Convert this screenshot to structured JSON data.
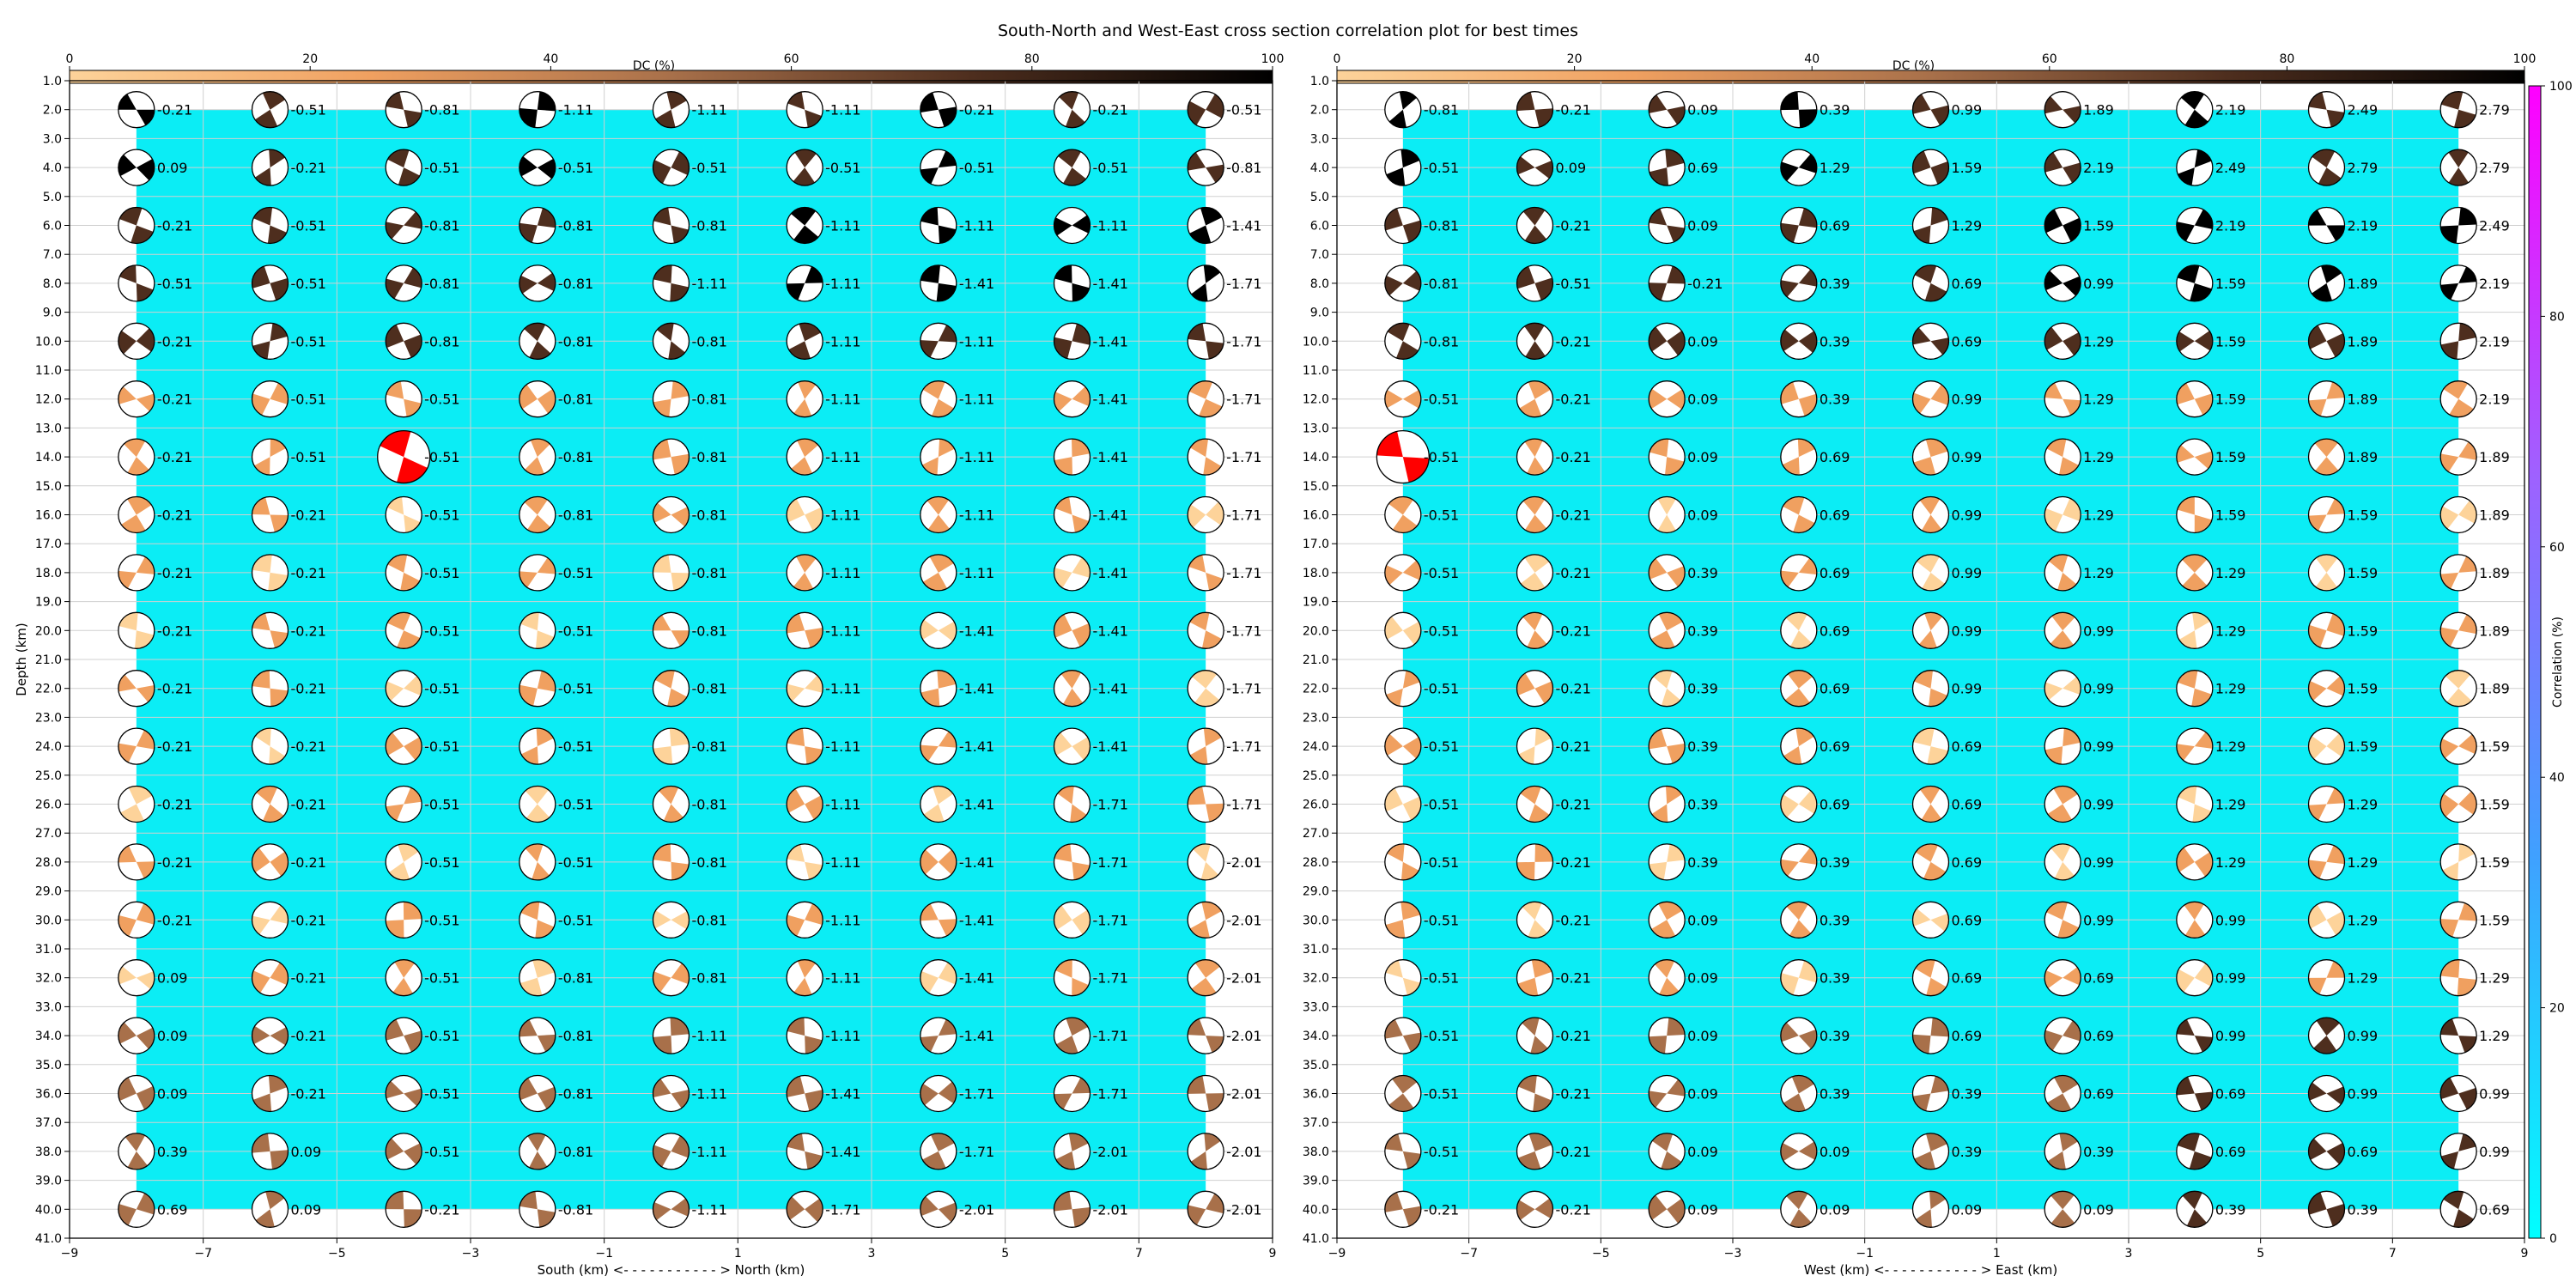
{
  "title": "South-North and West-East cross section correlation plot for best times",
  "colors": {
    "background_fill": "#0bedf5",
    "grid": "#d0d0d0",
    "best_solution": "#ff0000",
    "dc_gradient": [
      "#fdd39a",
      "#f0a060",
      "#a8704a",
      "#4e2e1e",
      "#000000"
    ],
    "correlation_gradient": [
      "#00ffff",
      "#40a0ff",
      "#a060ff",
      "#ff00ff"
    ]
  },
  "dc_colorbar": {
    "label": "DC (%)",
    "ticks": [
      "0",
      "20",
      "40",
      "60",
      "80",
      "100"
    ]
  },
  "correlation_colorbar": {
    "label": "Correlation (%)",
    "ticks": [
      "0",
      "20",
      "40",
      "60",
      "80",
      "100"
    ]
  },
  "ylabel": "Depth (km)",
  "y_ticks": [
    "1.0",
    "2.0",
    "3.0",
    "4.0",
    "5.0",
    "6.0",
    "7.0",
    "8.0",
    "9.0",
    "10.0",
    "11.0",
    "12.0",
    "13.0",
    "14.0",
    "15.0",
    "16.0",
    "17.0",
    "18.0",
    "19.0",
    "20.0",
    "21.0",
    "22.0",
    "23.0",
    "24.0",
    "25.0",
    "26.0",
    "27.0",
    "28.0",
    "29.0",
    "30.0",
    "31.0",
    "32.0",
    "33.0",
    "34.0",
    "35.0",
    "36.0",
    "37.0",
    "38.0",
    "39.0",
    "40.0",
    "41.0"
  ],
  "x_ticks": [
    "−9",
    "−7",
    "−5",
    "−3",
    "−1",
    "1",
    "3",
    "5",
    "7",
    "9"
  ],
  "chart_data": [
    {
      "type": "scatter",
      "subtype": "beachball-grid",
      "xlabel": "South (km) <- - - - - - - - - - - > North (km)",
      "ylabel": "Depth (km)",
      "xlim": [
        -9,
        9
      ],
      "ylim": [
        41,
        1
      ],
      "x": [
        -8,
        -6,
        -4,
        -2,
        0,
        2,
        4,
        6,
        8
      ],
      "depths": [
        2,
        4,
        6,
        8,
        10,
        12,
        14,
        16,
        18,
        20,
        22,
        24,
        26,
        28,
        30,
        32,
        34,
        36,
        38,
        40
      ],
      "best": {
        "x": -4,
        "depth": 14
      },
      "labels": [
        [
          "-0.21",
          "-0.51",
          "-0.81",
          "-1.11",
          "-1.11",
          "-1.11",
          "-0.21",
          "-0.21",
          "-0.51"
        ],
        [
          "0.09",
          "-0.21",
          "-0.51",
          "-0.51",
          "-0.51",
          "-0.51",
          "-0.51",
          "-0.51",
          "-0.81"
        ],
        [
          "-0.21",
          "-0.51",
          "-0.81",
          "-0.81",
          "-0.81",
          "-1.11",
          "-1.11",
          "-1.11",
          "-1.41"
        ],
        [
          "-0.51",
          "-0.51",
          "-0.81",
          "-0.81",
          "-1.11",
          "-1.11",
          "-1.41",
          "-1.41",
          "-1.71"
        ],
        [
          "-0.21",
          "-0.51",
          "-0.81",
          "-0.81",
          "-0.81",
          "-1.11",
          "-1.11",
          "-1.41",
          "-1.71"
        ],
        [
          "-0.21",
          "-0.51",
          "-0.51",
          "-0.81",
          "-0.81",
          "-1.11",
          "-1.11",
          "-1.41",
          "-1.71"
        ],
        [
          "-0.21",
          "-0.51",
          "-0.51",
          "-0.81",
          "-0.81",
          "-1.11",
          "-1.11",
          "-1.41",
          "-1.71"
        ],
        [
          "-0.21",
          "-0.21",
          "-0.51",
          "-0.81",
          "-0.81",
          "-1.11",
          "-1.11",
          "-1.41",
          "-1.71"
        ],
        [
          "-0.21",
          "-0.21",
          "-0.51",
          "-0.51",
          "-0.81",
          "-1.11",
          "-1.11",
          "-1.41",
          "-1.71"
        ],
        [
          "-0.21",
          "-0.21",
          "-0.51",
          "-0.51",
          "-0.81",
          "-1.11",
          "-1.41",
          "-1.41",
          "-1.71"
        ],
        [
          "-0.21",
          "-0.21",
          "-0.51",
          "-0.51",
          "-0.81",
          "-1.11",
          "-1.41",
          "-1.41",
          "-1.71"
        ],
        [
          "-0.21",
          "-0.21",
          "-0.51",
          "-0.51",
          "-0.81",
          "-1.11",
          "-1.41",
          "-1.41",
          "-1.71"
        ],
        [
          "-0.21",
          "-0.21",
          "-0.51",
          "-0.51",
          "-0.81",
          "-1.11",
          "-1.41",
          "-1.71",
          "-1.71"
        ],
        [
          "-0.21",
          "-0.21",
          "-0.51",
          "-0.51",
          "-0.81",
          "-1.11",
          "-1.41",
          "-1.71",
          "-2.01"
        ],
        [
          "-0.21",
          "-0.21",
          "-0.51",
          "-0.51",
          "-0.81",
          "-1.11",
          "-1.41",
          "-1.71",
          "-2.01"
        ],
        [
          "0.09",
          "-0.21",
          "-0.51",
          "-0.81",
          "-0.81",
          "-1.11",
          "-1.41",
          "-1.71",
          "-2.01"
        ],
        [
          "0.09",
          "-0.21",
          "-0.51",
          "-0.81",
          "-1.11",
          "-1.11",
          "-1.41",
          "-1.71",
          "-2.01"
        ],
        [
          "0.09",
          "-0.21",
          "-0.51",
          "-0.81",
          "-1.11",
          "-1.41",
          "-1.71",
          "-1.71",
          "-2.01"
        ],
        [
          "0.39",
          "0.09",
          "-0.51",
          "-0.81",
          "-1.11",
          "-1.41",
          "-1.71",
          "-2.01",
          "-2.01"
        ],
        [
          "0.69",
          "0.09",
          "-0.21",
          "-0.81",
          "-1.11",
          "-1.71",
          "-2.01",
          "-2.01",
          "-2.01"
        ]
      ]
    },
    {
      "type": "scatter",
      "subtype": "beachball-grid",
      "xlabel": "West (km) <- - - - - - - - - - - > East (km)",
      "ylabel": "Depth (km)",
      "xlim": [
        -9,
        9
      ],
      "ylim": [
        41,
        1
      ],
      "x": [
        -8,
        -6,
        -4,
        -2,
        0,
        2,
        4,
        6,
        8
      ],
      "depths": [
        2,
        4,
        6,
        8,
        10,
        12,
        14,
        16,
        18,
        20,
        22,
        24,
        26,
        28,
        30,
        32,
        34,
        36,
        38,
        40
      ],
      "best": {
        "x": -8,
        "depth": 14
      },
      "labels": [
        [
          "-0.81",
          "-0.21",
          "0.09",
          "0.39",
          "0.99",
          "1.89",
          "2.19",
          "2.49",
          "2.79"
        ],
        [
          "-0.51",
          "0.09",
          "0.69",
          "1.29",
          "1.59",
          "2.19",
          "2.49",
          "2.79",
          "2.79"
        ],
        [
          "-0.81",
          "-0.21",
          "0.09",
          "0.69",
          "1.29",
          "1.59",
          "2.19",
          "2.19",
          "2.49"
        ],
        [
          "-0.81",
          "-0.51",
          "-0.21",
          "0.39",
          "0.69",
          "0.99",
          "1.59",
          "1.89",
          "2.19"
        ],
        [
          "-0.81",
          "-0.21",
          "0.09",
          "0.39",
          "0.69",
          "1.29",
          "1.59",
          "1.89",
          "2.19"
        ],
        [
          "-0.51",
          "-0.21",
          "0.09",
          "0.39",
          "0.99",
          "1.29",
          "1.59",
          "1.89",
          "2.19"
        ],
        [
          "-0.51",
          "-0.21",
          "0.09",
          "0.69",
          "0.99",
          "1.29",
          "1.59",
          "1.89",
          "1.89"
        ],
        [
          "-0.51",
          "-0.21",
          "0.09",
          "0.69",
          "0.99",
          "1.29",
          "1.59",
          "1.59",
          "1.89"
        ],
        [
          "-0.51",
          "-0.21",
          "0.39",
          "0.69",
          "0.99",
          "1.29",
          "1.29",
          "1.59",
          "1.89"
        ],
        [
          "-0.51",
          "-0.21",
          "0.39",
          "0.69",
          "0.99",
          "0.99",
          "1.29",
          "1.59",
          "1.89"
        ],
        [
          "-0.51",
          "-0.21",
          "0.39",
          "0.69",
          "0.99",
          "0.99",
          "1.29",
          "1.59",
          "1.89"
        ],
        [
          "-0.51",
          "-0.21",
          "0.39",
          "0.69",
          "0.69",
          "0.99",
          "1.29",
          "1.59",
          "1.59"
        ],
        [
          "-0.51",
          "-0.21",
          "0.39",
          "0.69",
          "0.69",
          "0.99",
          "1.29",
          "1.29",
          "1.59"
        ],
        [
          "-0.51",
          "-0.21",
          "0.39",
          "0.39",
          "0.69",
          "0.99",
          "1.29",
          "1.29",
          "1.59"
        ],
        [
          "-0.51",
          "-0.21",
          "0.09",
          "0.39",
          "0.69",
          "0.99",
          "0.99",
          "1.29",
          "1.59"
        ],
        [
          "-0.51",
          "-0.21",
          "0.09",
          "0.39",
          "0.69",
          "0.69",
          "0.99",
          "1.29",
          "1.29"
        ],
        [
          "-0.51",
          "-0.21",
          "0.09",
          "0.39",
          "0.69",
          "0.69",
          "0.99",
          "0.99",
          "1.29"
        ],
        [
          "-0.51",
          "-0.21",
          "0.09",
          "0.39",
          "0.39",
          "0.69",
          "0.69",
          "0.99",
          "0.99"
        ],
        [
          "-0.51",
          "-0.21",
          "0.09",
          "0.09",
          "0.39",
          "0.39",
          "0.69",
          "0.69",
          "0.99"
        ],
        [
          "-0.21",
          "-0.21",
          "0.09",
          "0.09",
          "0.09",
          "0.09",
          "0.39",
          "0.39",
          "0.69"
        ]
      ]
    }
  ]
}
